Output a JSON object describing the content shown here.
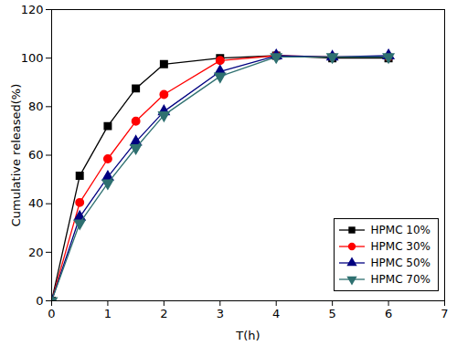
{
  "chart_data": {
    "type": "line",
    "x_label": "T(h)",
    "y_label": "Cumulative released(%)",
    "x": [
      0,
      0.5,
      1,
      1.5,
      2,
      3,
      4,
      5,
      6
    ],
    "series": [
      {
        "name": "HPMC 10%",
        "color": "#000000",
        "marker": "square",
        "values": [
          0,
          51.5,
          72,
          87.5,
          97.5,
          100,
          101,
          100,
          100
        ]
      },
      {
        "name": "HPMC 30%",
        "color": "#ff0000",
        "marker": "circle",
        "values": [
          0,
          40.5,
          58.5,
          74,
          85,
          99,
          101,
          100.5,
          100.5
        ]
      },
      {
        "name": "HPMC 50%",
        "color": "#000080",
        "marker": "triangle",
        "values": [
          0,
          34.5,
          51,
          65.5,
          78,
          94.5,
          101,
          100.5,
          101
        ]
      },
      {
        "name": "HPMC 70%",
        "color": "#2e7070",
        "marker": "triangle-down",
        "values": [
          0,
          32,
          48.5,
          63,
          76.5,
          92.5,
          100.5,
          100.5,
          100.5
        ]
      }
    ],
    "xlim": [
      0,
      7
    ],
    "xticks": [
      0,
      1,
      2,
      3,
      4,
      5,
      6,
      7
    ],
    "ylim": [
      0,
      120
    ],
    "yticks": [
      0,
      20,
      40,
      60,
      80,
      100,
      120
    ],
    "grid": false,
    "legend": "lower right"
  }
}
